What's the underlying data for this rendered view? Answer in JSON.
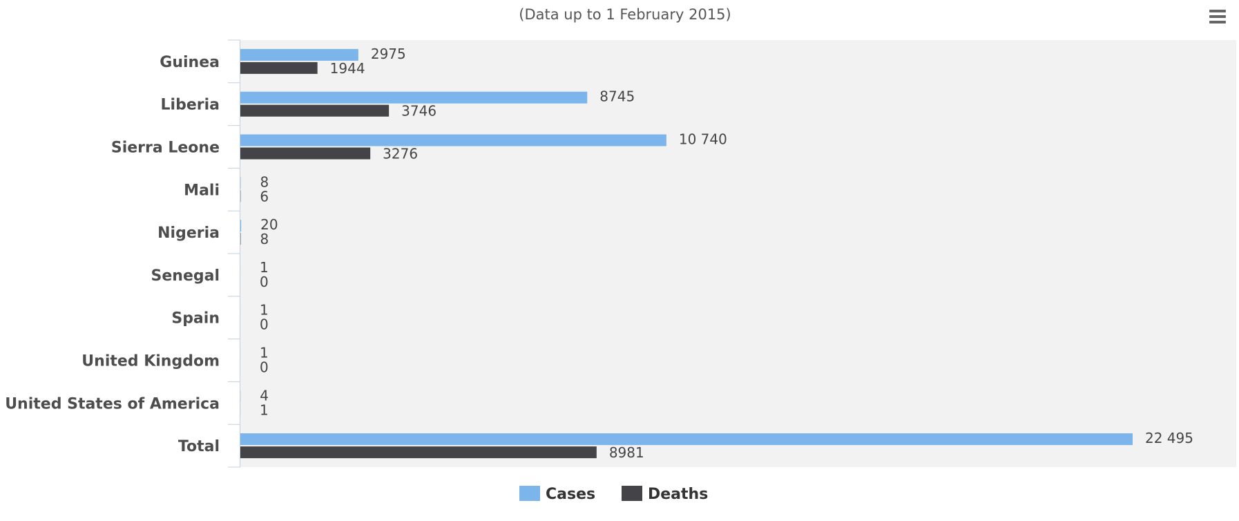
{
  "chart_data": {
    "type": "bar",
    "orientation": "horizontal",
    "subtitle": "(Data up to 1 February 2015)",
    "categories": [
      "Guinea",
      "Liberia",
      "Sierra Leone",
      "Mali",
      "Nigeria",
      "Senegal",
      "Spain",
      "United Kingdom",
      "United States of America",
      "Total"
    ],
    "series": [
      {
        "name": "Cases",
        "color": "#7cb5ec",
        "values": [
          2975,
          8745,
          10740,
          8,
          20,
          1,
          1,
          1,
          4,
          22495
        ],
        "labels": [
          "2975",
          "8745",
          "10 740",
          "8",
          "20",
          "1",
          "1",
          "1",
          "4",
          "22 495"
        ]
      },
      {
        "name": "Deaths",
        "color": "#434348",
        "values": [
          1944,
          3746,
          3276,
          6,
          8,
          0,
          0,
          0,
          1,
          8981
        ],
        "labels": [
          "1944",
          "3746",
          "3276",
          "6",
          "8",
          "0",
          "0",
          "0",
          "1",
          "8981"
        ]
      }
    ],
    "xlim": [
      0,
      22495
    ],
    "grid": false,
    "plot_background": "#f2f2f2",
    "legend_position": "bottom-center"
  },
  "toolbar": {
    "menu_icon": "hamburger-menu-icon"
  }
}
